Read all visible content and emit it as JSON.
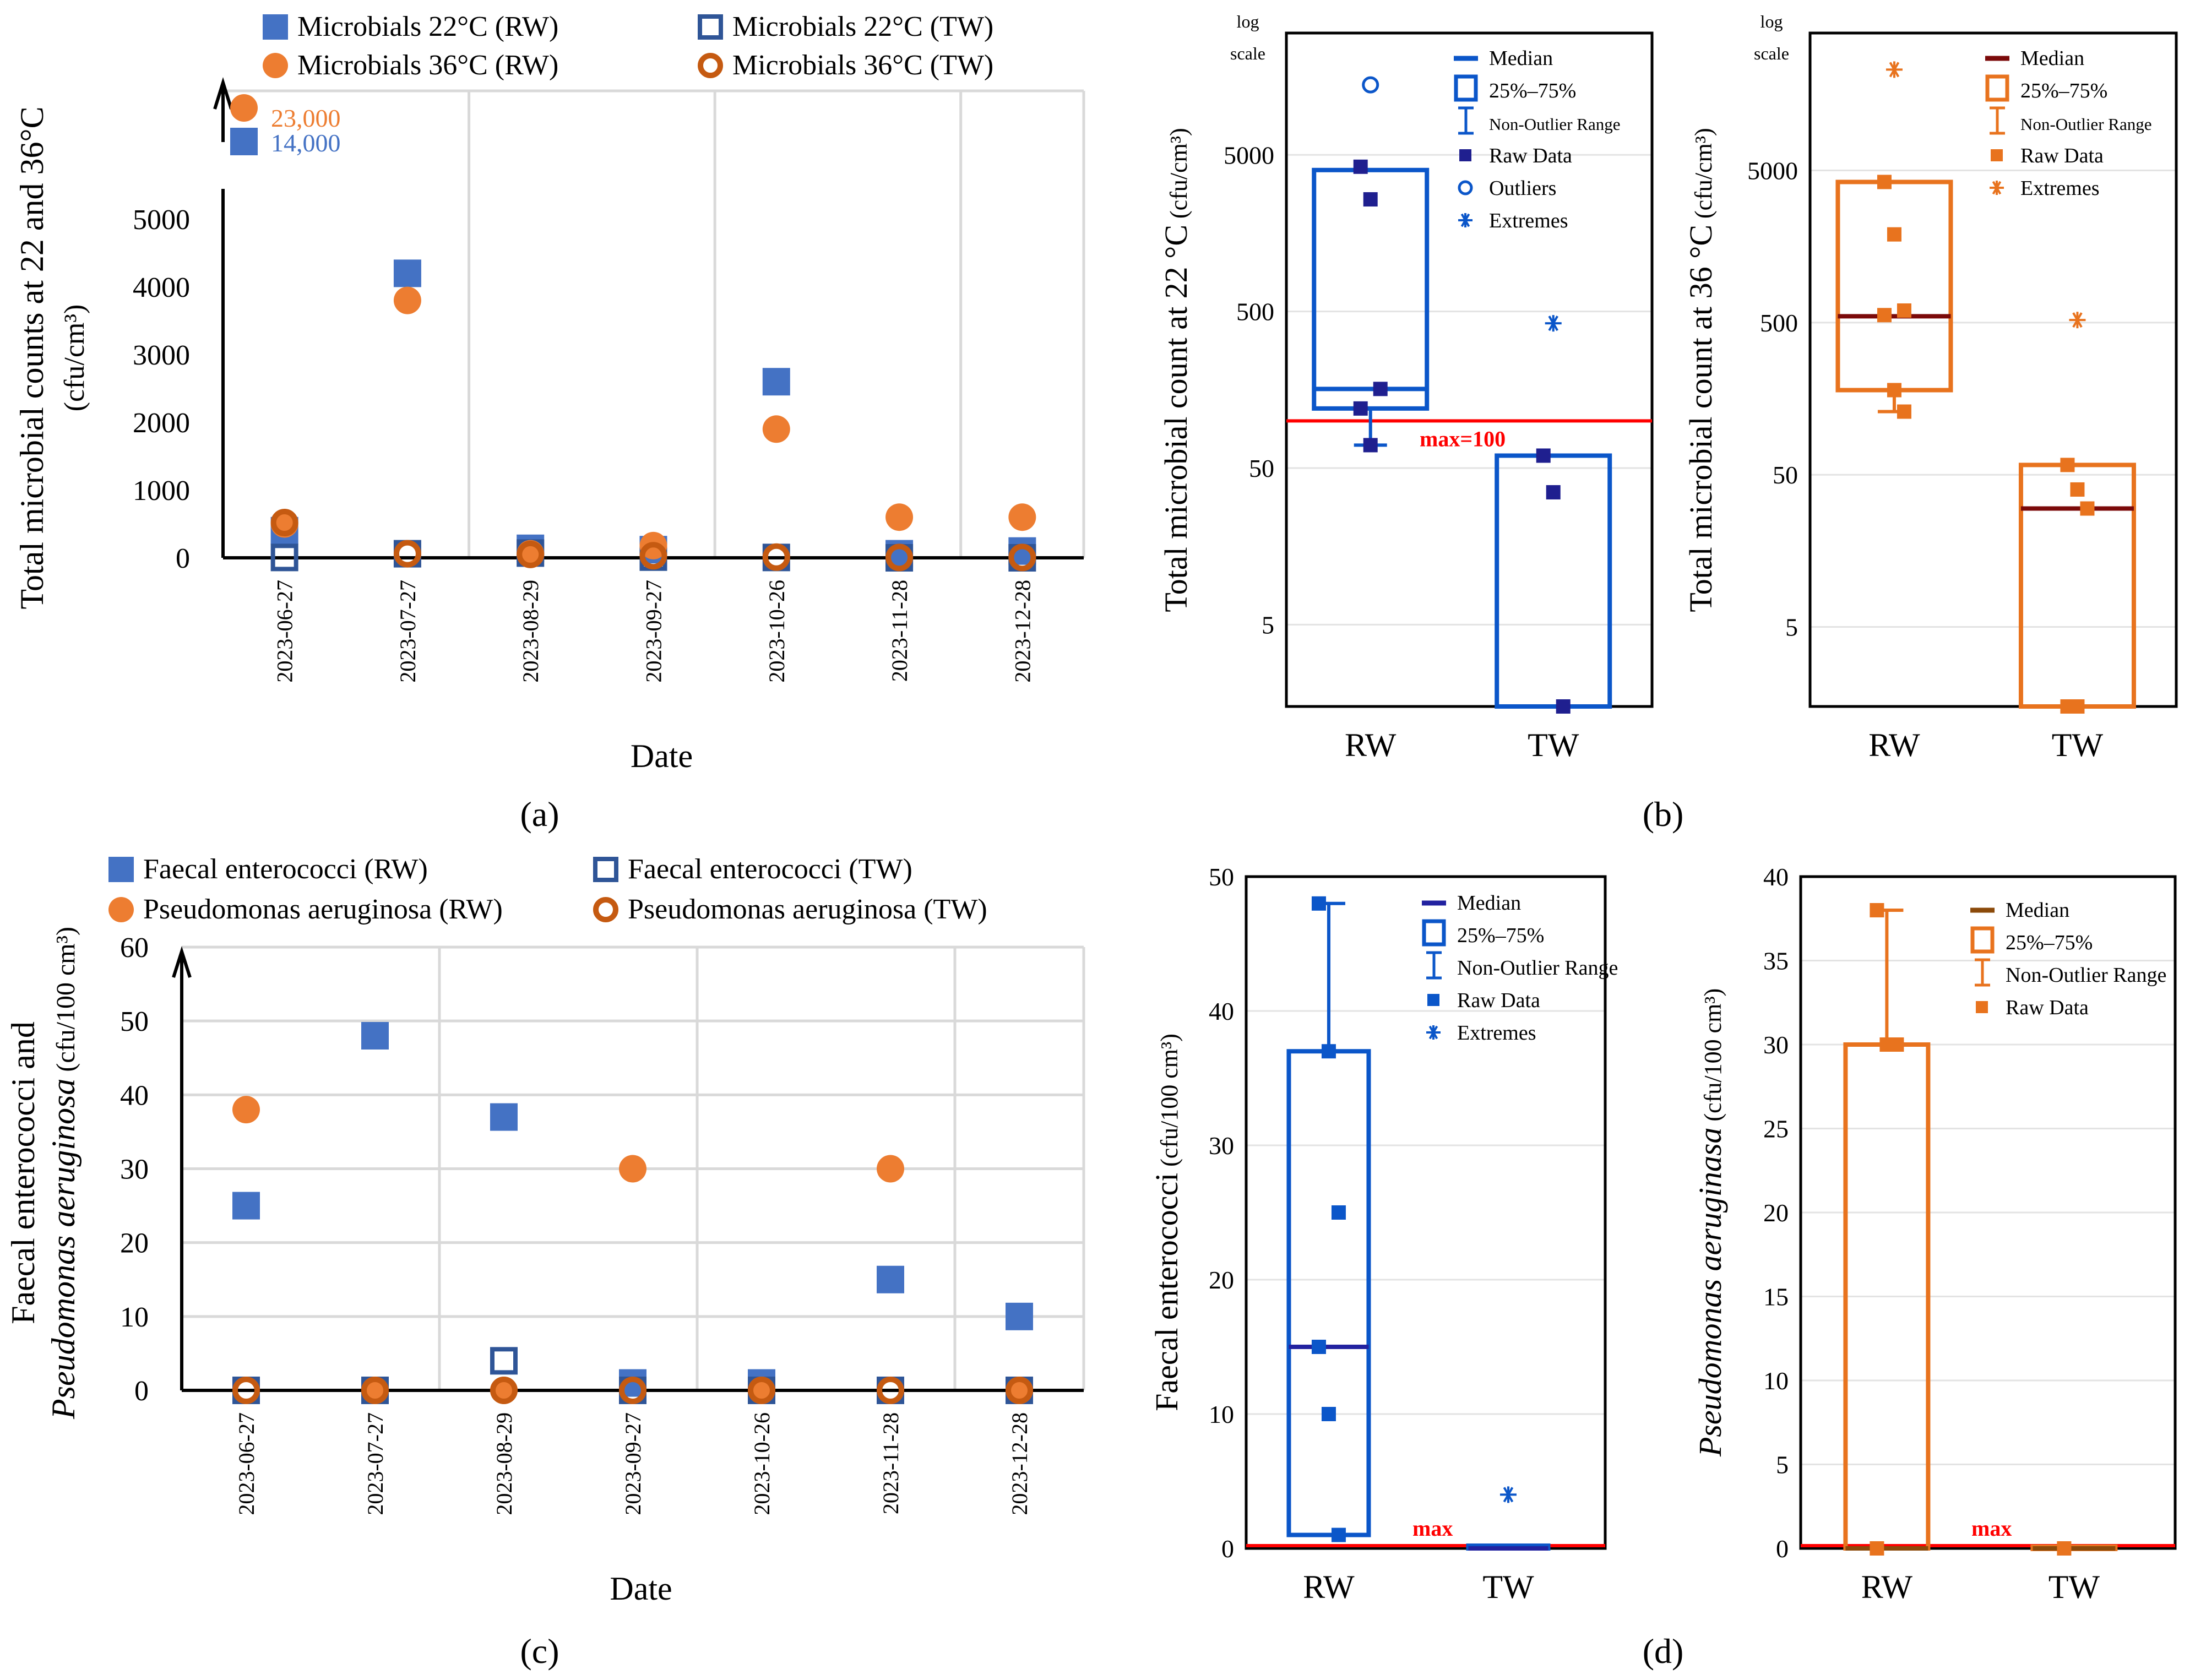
{
  "panel_labels": {
    "a": "(a)",
    "b": "(b)",
    "c": "(c)",
    "d": "(d)"
  },
  "colors": {
    "blue": "#4472c4",
    "blue_dark": "#2f5597",
    "orange": "#ed7d31",
    "orange_dark": "#c55a11",
    "box_blue": "#0b56c9",
    "navy": "#1f1f8f",
    "box_orange": "#e8731e",
    "median_dark": "#7b0a0a",
    "red_limit": "#ff0000"
  },
  "chart_data": [
    {
      "id": "a",
      "type": "scatter",
      "xlabel": "Date",
      "ylabel_line1": "Total microbial counts at 22 and 36°C",
      "ylabel_line2": "(cfu/cm³)",
      "categories": [
        "2023-06-27",
        "2023-07-27",
        "2023-08-29",
        "2023-09-27",
        "2023-10-26",
        "2023-11-28",
        "2023-12-28"
      ],
      "ylim": [
        0,
        5000
      ],
      "yticks": [
        "0",
        "1000",
        "2000",
        "3000",
        "4000",
        "5000"
      ],
      "break_labels": [
        {
          "text": "23,000",
          "series": "Microbials 36°C (RW)",
          "value": 23000
        },
        {
          "text": "14,000",
          "series": "Microbials 22°C (RW)",
          "value": 14000
        }
      ],
      "series": [
        {
          "name": "Microbials 22°C (RW)",
          "marker": "square-filled",
          "values": [
            400,
            4200,
            140,
            120,
            2600,
            60,
            100
          ]
        },
        {
          "name": "Microbials 22°C (TW)",
          "marker": "square-open",
          "values": [
            5,
            60,
            70,
            10,
            5,
            0,
            0
          ]
        },
        {
          "name": "Microbials 36°C (RW)",
          "marker": "circle-filled",
          "values": [
            500,
            3800,
            60,
            180,
            1900,
            600,
            600
          ]
        },
        {
          "name": "Microbials 36°C (TW)",
          "marker": "circle-open",
          "values": [
            520,
            60,
            50,
            30,
            10,
            5,
            5
          ]
        }
      ]
    },
    {
      "id": "b-left",
      "type": "box",
      "scale": "log",
      "scale_note_1": "log",
      "scale_note_2": "scale",
      "ylabel": "Total microbial count at 22 °C",
      "ylabel_unit": "(cfu/cm³)",
      "categories": [
        "RW",
        "TW"
      ],
      "ylim": [
        1.5,
        30000
      ],
      "yticks": [
        "5",
        "50",
        "500",
        "5000"
      ],
      "limit": {
        "value": 100,
        "label": "max=100"
      },
      "legend": [
        "Median",
        "25%–75%",
        "Non-Outlier Range",
        "Raw Data",
        "Outliers",
        "Extremes"
      ],
      "boxes": [
        {
          "category": "RW",
          "q1": 120,
          "median": 160,
          "q3": 4000,
          "whisker_low": 70,
          "whisker_high": 4000,
          "raw": [
            4200,
            2600,
            160,
            120,
            70
          ],
          "outliers": [
            14000
          ],
          "extremes": []
        },
        {
          "category": "TW",
          "q1": 1.5,
          "median": 1.5,
          "q3": 60,
          "whisker_low": 1.5,
          "whisker_high": 60,
          "raw": [
            60,
            35,
            1.5
          ],
          "outliers": [],
          "extremes": [
            420
          ]
        }
      ]
    },
    {
      "id": "b-right",
      "type": "box",
      "scale": "log",
      "scale_note_1": "log",
      "scale_note_2": "scale",
      "ylabel": "Total microbial count at 36 °C",
      "ylabel_unit": "(cfu/cm³)",
      "categories": [
        "RW",
        "TW"
      ],
      "ylim": [
        1.5,
        40000
      ],
      "yticks": [
        "5",
        "50",
        "500",
        "5000"
      ],
      "legend": [
        "Median",
        "25%–75%",
        "Non-Outlier Range",
        "Raw Data",
        "Extremes"
      ],
      "boxes": [
        {
          "category": "RW",
          "q1": 180,
          "median": 550,
          "q3": 4200,
          "whisker_low": 130,
          "whisker_high": 4200,
          "raw": [
            4200,
            1900,
            600,
            560,
            180,
            130
          ],
          "outliers": [],
          "extremes": [
            23000
          ]
        },
        {
          "category": "TW",
          "q1": 1.5,
          "median": 30,
          "q3": 58,
          "whisker_low": 1.5,
          "whisker_high": 58,
          "raw": [
            58,
            40,
            30,
            1.5,
            1.5
          ],
          "outliers": [],
          "extremes": [
            520
          ]
        }
      ]
    },
    {
      "id": "c",
      "type": "scatter",
      "xlabel": "Date",
      "ylabel_line1": "Faecal enterococci and",
      "ylabel_line2_italic": "Pseudomonas aeruginosa",
      "ylabel_line2_rest": " (cfu/100 cm³)",
      "categories": [
        "2023-06-27",
        "2023-07-27",
        "2023-08-29",
        "2023-09-27",
        "2023-10-26",
        "2023-11-28",
        "2023-12-28"
      ],
      "ylim": [
        0,
        60
      ],
      "yticks": [
        "0",
        "10",
        "20",
        "30",
        "40",
        "50",
        "60"
      ],
      "series": [
        {
          "name": "Faecal enterococci (RW)",
          "marker": "square-filled",
          "values": [
            25,
            48,
            37,
            1,
            1,
            15,
            10
          ]
        },
        {
          "name": "Faecal enterococci (TW)",
          "marker": "square-open",
          "values": [
            0,
            0,
            4,
            0,
            0,
            0,
            0
          ]
        },
        {
          "name": "Pseudomonas aeruginosa (RW)",
          "marker": "circle-filled",
          "values": [
            38,
            0,
            0,
            30,
            0,
            30,
            0
          ]
        },
        {
          "name": "Pseudomonas aeruginosa (TW)",
          "marker": "circle-open",
          "values": [
            0,
            0,
            0,
            0,
            0,
            0,
            0
          ]
        }
      ]
    },
    {
      "id": "d-left",
      "type": "box",
      "ylabel": "Faecal enterococci",
      "ylabel_unit": "(cfu/100 cm³)",
      "categories": [
        "RW",
        "TW"
      ],
      "ylim": [
        0,
        50
      ],
      "yticks": [
        "0",
        "10",
        "20",
        "30",
        "40",
        "50"
      ],
      "limit": {
        "value": 0,
        "label": "max"
      },
      "legend": [
        "Median",
        "25%–75%",
        "Non-Outlier Range",
        "Raw Data",
        "Extremes"
      ],
      "boxes": [
        {
          "category": "RW",
          "q1": 1,
          "median": 15,
          "q3": 37,
          "whisker_low": 1,
          "whisker_high": 48,
          "raw": [
            48,
            37,
            25,
            15,
            10,
            1
          ],
          "outliers": [],
          "extremes": []
        },
        {
          "category": "TW",
          "q1": 0,
          "median": 0,
          "q3": 0.2,
          "whisker_low": 0,
          "whisker_high": 0.2,
          "raw": [],
          "outliers": [],
          "extremes": [
            4
          ]
        }
      ]
    },
    {
      "id": "d-right",
      "type": "box",
      "ylabel_italic": "Pseudomonas aeruginasa",
      "ylabel_unit": "(cfu/100 cm³)",
      "categories": [
        "RW",
        "TW"
      ],
      "ylim": [
        0,
        40
      ],
      "yticks": [
        "0",
        "5",
        "10",
        "15",
        "20",
        "25",
        "30",
        "35",
        "40"
      ],
      "limit": {
        "value": 0,
        "label": "max"
      },
      "legend": [
        "Median",
        "25%–75%",
        "Non-Outlier Range",
        "Raw Data"
      ],
      "boxes": [
        {
          "category": "RW",
          "q1": 0,
          "median": 0,
          "q3": 30,
          "whisker_low": 0,
          "whisker_high": 38,
          "raw": [
            38,
            30,
            30,
            0
          ],
          "outliers": [],
          "extremes": []
        },
        {
          "category": "TW",
          "q1": 0,
          "median": 0,
          "q3": 0.1,
          "whisker_low": 0,
          "whisker_high": 0.1,
          "raw": [
            0
          ],
          "outliers": [],
          "extremes": []
        }
      ]
    }
  ]
}
